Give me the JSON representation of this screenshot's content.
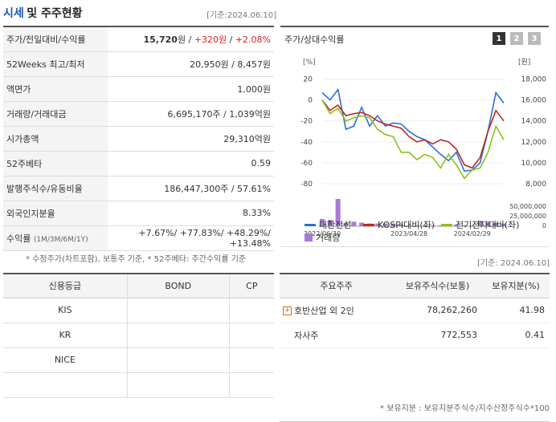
{
  "header": {
    "title_part1": "시세",
    "title_part2": "및 주주현황",
    "date": "[기준:2024.06.10]"
  },
  "info_rows": [
    {
      "label": "주가/전일대비/수익률",
      "price": "15,720",
      "change": "+320",
      "rate": "+2.08%",
      "unit": "원"
    },
    {
      "label": "52Weeks 최고/최저",
      "value": "20,950원 / 8,457원"
    },
    {
      "label": "액면가",
      "value": "1,000원"
    },
    {
      "label": "거래량/거래대금",
      "value": "6,695,170주 / 1,039억원"
    },
    {
      "label": "시가총액",
      "value": "29,310억원"
    },
    {
      "label": "52주베타",
      "value": "0.59"
    },
    {
      "label": "발행주식수/유동비율",
      "value": "186,447,300주 / 57.61%"
    },
    {
      "label": "외국인지분율",
      "value": "8.33%"
    },
    {
      "label": "수익률",
      "sublabel": "(1M/3M/6M/1Y)",
      "value": "+7.67%/ +77.83%/ +48.29%/ +13.48%"
    }
  ],
  "note": "* 수정주가(차트포함), 보통주 기준, * 52주베타: 주간수익률 기준",
  "chart_header": "주가/상대수익률",
  "chart_buttons": [
    "1",
    "2",
    "3"
  ],
  "colors": {
    "blue": "#2a6fdb",
    "red": "#c0281e",
    "green": "#8cc21a",
    "purple": "#a87ad6"
  },
  "chart_data": {
    "type": "line",
    "left_axis_unit": "[%]",
    "right_axis_unit": "[원]",
    "left_ticks": [
      "20",
      "0",
      "-20",
      "-40",
      "-60",
      "-80"
    ],
    "right_ticks": [
      "18,000",
      "16,000",
      "14,000",
      "12,000",
      "10,000",
      "8,000"
    ],
    "volume_ticks": [
      "50,000,000",
      "25,000,000",
      "0"
    ],
    "x_ticks": [
      "2022/06/30",
      "2023/04/28",
      "2024/02/29"
    ],
    "ylim_left": [
      -90,
      25
    ],
    "ylim_right": [
      7000,
      18000
    ],
    "series": [
      {
        "name": "대한전선",
        "values": [
          7,
          0,
          10,
          -28,
          -25,
          -7,
          -25,
          -15,
          -25,
          -22,
          -23,
          -30,
          -35,
          -38,
          -45,
          -52,
          -58,
          -50,
          -68,
          -67,
          -60,
          -30,
          7,
          -3
        ]
      },
      {
        "name": "KOSPI대비(좌)",
        "values": [
          0,
          -10,
          -5,
          -15,
          -13,
          -12,
          -15,
          -20,
          -23,
          -25,
          -27,
          -35,
          -40,
          -38,
          -42,
          -38,
          -40,
          -47,
          -62,
          -65,
          -55,
          -30,
          -10,
          -20
        ]
      },
      {
        "name": "전기전자대비(좌)",
        "values": [
          0,
          -13,
          -8,
          -20,
          -17,
          -15,
          -17,
          -28,
          -33,
          -35,
          -50,
          -50,
          -57,
          -52,
          -55,
          -65,
          -52,
          -62,
          -75,
          -67,
          -65,
          -50,
          -25,
          -38
        ]
      }
    ],
    "volume_name": "거래량",
    "volume": [
      8,
      7,
      30,
      4,
      5,
      4,
      3,
      3,
      3,
      3,
      2,
      1,
      1,
      1,
      1,
      1,
      1,
      2,
      1,
      1,
      6,
      5,
      4,
      3
    ]
  },
  "credit": {
    "headers": [
      "신용등급",
      "BOND",
      "CP"
    ],
    "rows": [
      [
        "KIS",
        "",
        ""
      ],
      [
        "KR",
        "",
        ""
      ],
      [
        "NICE",
        "",
        ""
      ],
      [
        "",
        "",
        ""
      ]
    ]
  },
  "holders": {
    "date": "[기준: 2024.06.10]",
    "headers": [
      "주요주주",
      "보유주식수(보통)",
      "보유지분(%)"
    ],
    "rows": [
      {
        "name": "호반산업 외 2인",
        "shares": "78,262,260",
        "pct": "41.98"
      },
      {
        "name": "자사주",
        "shares": "772,553",
        "pct": "0.41"
      }
    ],
    "footnote": "* 보유지분 : 보유지분주식수/지수산정주식수*100"
  }
}
